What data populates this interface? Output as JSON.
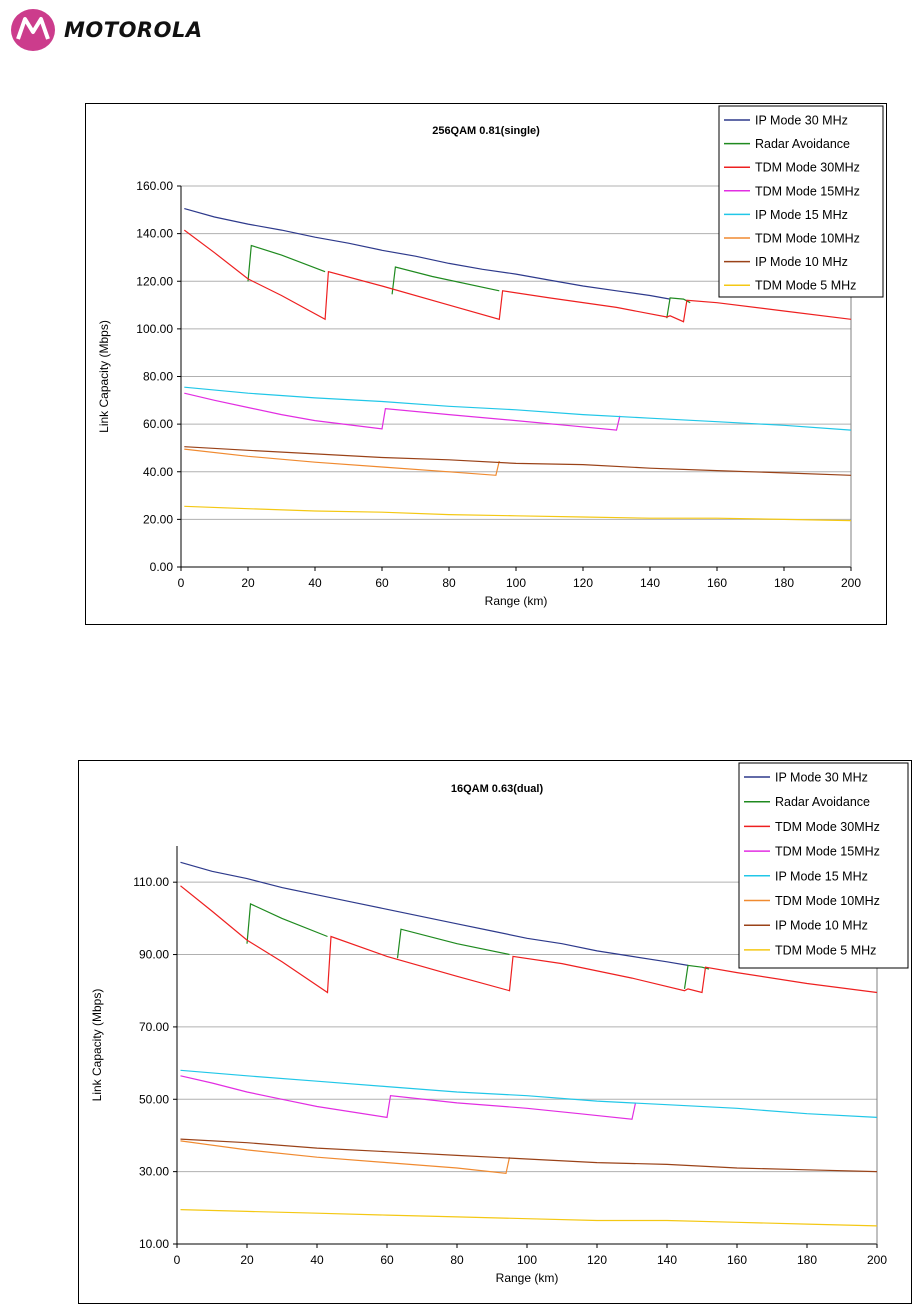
{
  "header": {
    "logo_text": "MOTOROLA",
    "logo_icon": "motorola-batwing-icon",
    "logo_color": "#cc3c8c"
  },
  "chart_data": [
    {
      "type": "line",
      "title": "256QAM 0.81(single)",
      "xlabel": "Range (km)",
      "ylabel": "Link Capacity (Mbps)",
      "xlim": [
        0,
        200
      ],
      "ylim": [
        0,
        160
      ],
      "xticks": [
        "0",
        "20",
        "40",
        "60",
        "80",
        "100",
        "120",
        "140",
        "160",
        "180",
        "200"
      ],
      "yticks": [
        "0.00",
        "20.00",
        "40.00",
        "60.00",
        "80.00",
        "100.00",
        "120.00",
        "140.00",
        "160.00"
      ],
      "grid": "horizontal",
      "legend_position": "top-right",
      "series": [
        {
          "name": "IP Mode 30 MHz",
          "color": "#2e3a8c",
          "points": [
            [
              1,
              150.5
            ],
            [
              10,
              147
            ],
            [
              20,
              144
            ],
            [
              30,
              141.5
            ],
            [
              40,
              138.5
            ],
            [
              50,
              136
            ],
            [
              60,
              133
            ],
            [
              70,
              130.5
            ],
            [
              80,
              127.5
            ],
            [
              90,
              125
            ],
            [
              100,
              123
            ],
            [
              110,
              120.5
            ],
            [
              120,
              118
            ],
            [
              130,
              116
            ],
            [
              140,
              114
            ],
            [
              146,
              112.5
            ]
          ]
        },
        {
          "name": "Radar Avoidance",
          "color": "#1f8a1f",
          "points": [
            [
              20,
              120
            ],
            [
              21,
              135
            ],
            [
              30,
              131
            ],
            [
              43,
              124
            ],
            [
              null,
              null
            ],
            [
              63,
              114.5
            ],
            [
              64,
              126
            ],
            [
              75,
              122
            ],
            [
              95,
              116
            ],
            [
              null,
              null
            ],
            [
              145,
              104.5
            ],
            [
              146,
              113
            ],
            [
              150,
              112.5
            ],
            [
              152,
              111
            ]
          ]
        },
        {
          "name": "TDM Mode 30MHz",
          "color": "#ee2020",
          "points": [
            [
              1,
              141.5
            ],
            [
              10,
              132
            ],
            [
              20,
              121
            ],
            [
              30,
              114
            ],
            [
              43,
              104
            ],
            [
              44,
              124
            ],
            [
              60,
              118
            ],
            [
              80,
              110
            ],
            [
              95,
              104
            ],
            [
              96,
              116
            ],
            [
              110,
              113
            ],
            [
              130,
              109
            ],
            [
              145,
              105
            ],
            [
              146,
              105.5
            ],
            [
              150,
              103
            ],
            [
              151,
              112
            ],
            [
              160,
              111
            ],
            [
              180,
              107.5
            ],
            [
              200,
              104
            ]
          ]
        },
        {
          "name": "TDM Mode 15MHz",
          "color": "#e22ee2",
          "points": [
            [
              1,
              73
            ],
            [
              10,
              70
            ],
            [
              20,
              67
            ],
            [
              30,
              64
            ],
            [
              40,
              61.5
            ],
            [
              60,
              58
            ],
            [
              61,
              66.5
            ],
            [
              80,
              64
            ],
            [
              100,
              61.5
            ],
            [
              115,
              59.5
            ],
            [
              130,
              57.5
            ],
            [
              131,
              63.5
            ]
          ]
        },
        {
          "name": "IP Mode 15 MHz",
          "color": "#21c7e8",
          "points": [
            [
              1,
              75.5
            ],
            [
              20,
              73
            ],
            [
              40,
              71
            ],
            [
              60,
              69.5
            ],
            [
              80,
              67.5
            ],
            [
              100,
              66
            ],
            [
              120,
              64
            ],
            [
              140,
              62.5
            ],
            [
              160,
              61
            ],
            [
              180,
              59.5
            ],
            [
              200,
              57.5
            ]
          ]
        },
        {
          "name": "TDM Mode 10MHz",
          "color": "#f08a30",
          "points": [
            [
              1,
              49.5
            ],
            [
              20,
              46.5
            ],
            [
              40,
              44
            ],
            [
              60,
              42
            ],
            [
              80,
              40
            ],
            [
              94,
              38.5
            ],
            [
              95,
              44.5
            ]
          ]
        },
        {
          "name": "IP Mode 10 MHz",
          "color": "#9a4218",
          "points": [
            [
              1,
              50.5
            ],
            [
              20,
              49
            ],
            [
              40,
              47.5
            ],
            [
              60,
              46
            ],
            [
              80,
              45
            ],
            [
              100,
              43.5
            ],
            [
              120,
              43
            ],
            [
              140,
              41.5
            ],
            [
              160,
              40.5
            ],
            [
              180,
              39.5
            ],
            [
              200,
              38.5
            ]
          ]
        },
        {
          "name": "TDM Mode 5 MHz",
          "color": "#f4c814",
          "points": [
            [
              1,
              25.5
            ],
            [
              20,
              24.5
            ],
            [
              40,
              23.5
            ],
            [
              60,
              23
            ],
            [
              80,
              22
            ],
            [
              100,
              21.5
            ],
            [
              120,
              21
            ],
            [
              140,
              20.5
            ],
            [
              160,
              20.5
            ],
            [
              180,
              20
            ],
            [
              200,
              19.5
            ]
          ]
        }
      ]
    },
    {
      "type": "line",
      "title": "16QAM 0.63(dual)",
      "xlabel": "Range (km)",
      "ylabel": "Link Capacity (Mbps)",
      "xlim": [
        0,
        200
      ],
      "ylim": [
        10,
        120
      ],
      "xticks": [
        "0",
        "20",
        "40",
        "60",
        "80",
        "100",
        "120",
        "140",
        "160",
        "180",
        "200"
      ],
      "yticks": [
        "10.00",
        "30.00",
        "50.00",
        "70.00",
        "90.00",
        "110.00"
      ],
      "grid": "horizontal",
      "legend_position": "top-right",
      "series": [
        {
          "name": "IP Mode 30 MHz",
          "color": "#2e3a8c",
          "points": [
            [
              1,
              115.5
            ],
            [
              10,
              113
            ],
            [
              20,
              111
            ],
            [
              30,
              108.5
            ],
            [
              40,
              106.5
            ],
            [
              50,
              104.5
            ],
            [
              60,
              102.5
            ],
            [
              70,
              100.5
            ],
            [
              80,
              98.5
            ],
            [
              90,
              96.5
            ],
            [
              100,
              94.5
            ],
            [
              110,
              93
            ],
            [
              120,
              91
            ],
            [
              130,
              89.5
            ],
            [
              140,
              88
            ],
            [
              146,
              87
            ]
          ]
        },
        {
          "name": "Radar Avoidance",
          "color": "#1f8a1f",
          "points": [
            [
              20,
              93
            ],
            [
              21,
              104
            ],
            [
              30,
              100
            ],
            [
              43,
              95
            ],
            [
              null,
              null
            ],
            [
              63,
              89
            ],
            [
              64,
              97
            ],
            [
              80,
              93
            ],
            [
              95,
              90
            ],
            [
              null,
              null
            ],
            [
              145,
              80.5
            ],
            [
              146,
              87
            ],
            [
              150,
              86.5
            ],
            [
              152,
              86
            ]
          ]
        },
        {
          "name": "TDM Mode 30MHz",
          "color": "#ee2020",
          "points": [
            [
              1,
              109
            ],
            [
              10,
              102
            ],
            [
              20,
              94
            ],
            [
              30,
              88
            ],
            [
              43,
              79.5
            ],
            [
              44,
              95
            ],
            [
              60,
              89.5
            ],
            [
              80,
              84
            ],
            [
              95,
              80
            ],
            [
              96,
              89.5
            ],
            [
              110,
              87.5
            ],
            [
              130,
              83.5
            ],
            [
              145,
              80
            ],
            [
              146,
              80.5
            ],
            [
              150,
              79.5
            ],
            [
              151,
              86.5
            ],
            [
              160,
              85
            ],
            [
              180,
              82
            ],
            [
              200,
              79.5
            ]
          ]
        },
        {
          "name": "TDM Mode 15MHz",
          "color": "#e22ee2",
          "points": [
            [
              1,
              56.5
            ],
            [
              10,
              54.5
            ],
            [
              20,
              52
            ],
            [
              30,
              50
            ],
            [
              40,
              48
            ],
            [
              60,
              45
            ],
            [
              61,
              51
            ],
            [
              80,
              49
            ],
            [
              100,
              47.5
            ],
            [
              115,
              46
            ],
            [
              130,
              44.5
            ],
            [
              131,
              49
            ]
          ]
        },
        {
          "name": "IP Mode 15 MHz",
          "color": "#21c7e8",
          "points": [
            [
              1,
              58
            ],
            [
              20,
              56.5
            ],
            [
              40,
              55
            ],
            [
              60,
              53.5
            ],
            [
              80,
              52
            ],
            [
              100,
              51
            ],
            [
              120,
              49.5
            ],
            [
              140,
              48.5
            ],
            [
              160,
              47.5
            ],
            [
              180,
              46
            ],
            [
              200,
              45
            ]
          ]
        },
        {
          "name": "TDM Mode 10MHz",
          "color": "#f08a30",
          "points": [
            [
              1,
              38.5
            ],
            [
              20,
              36
            ],
            [
              40,
              34
            ],
            [
              60,
              32.5
            ],
            [
              80,
              31
            ],
            [
              94,
              29.5
            ],
            [
              95,
              34
            ]
          ]
        },
        {
          "name": "IP Mode 10 MHz",
          "color": "#9a4218",
          "points": [
            [
              1,
              39
            ],
            [
              20,
              38
            ],
            [
              40,
              36.5
            ],
            [
              60,
              35.5
            ],
            [
              80,
              34.5
            ],
            [
              100,
              33.5
            ],
            [
              120,
              32.5
            ],
            [
              140,
              32
            ],
            [
              160,
              31
            ],
            [
              180,
              30.5
            ],
            [
              200,
              30
            ]
          ]
        },
        {
          "name": "TDM Mode 5 MHz",
          "color": "#f4c814",
          "points": [
            [
              1,
              19.5
            ],
            [
              20,
              19
            ],
            [
              40,
              18.5
            ],
            [
              60,
              18
            ],
            [
              80,
              17.5
            ],
            [
              100,
              17
            ],
            [
              120,
              16.5
            ],
            [
              140,
              16.5
            ],
            [
              160,
              16
            ],
            [
              180,
              15.5
            ],
            [
              200,
              15
            ]
          ]
        }
      ]
    }
  ]
}
